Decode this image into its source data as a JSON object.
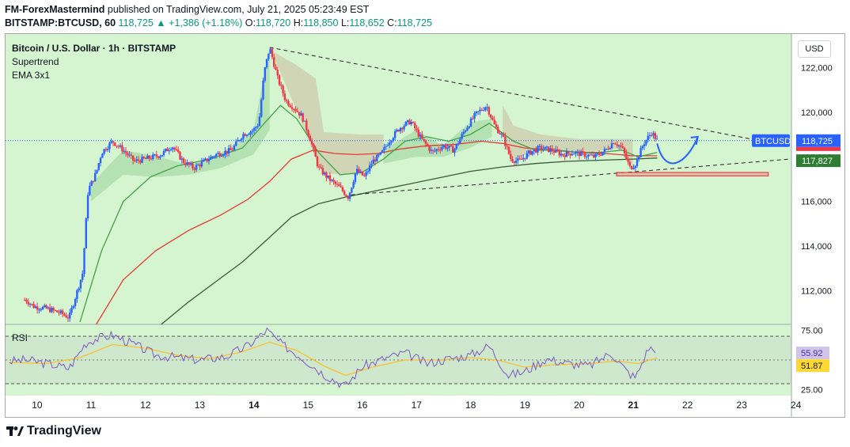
{
  "header": {
    "author": "FM-ForexMastermind",
    "published_text": "published on TradingView.com, July 21, 2025 05:23:49 EST",
    "symbol_line": "BITSTAMP:BTCUSD, 60",
    "last": "118,725",
    "change": "▲ +1,386 (+1.18%)",
    "o_label": "O:",
    "o": "118,720",
    "h_label": "H:",
    "h": "118,850",
    "l_label": "L:",
    "l": "118,652",
    "c_label": "C:",
    "c": "118,725"
  },
  "legend": {
    "title": "Bitcoin / U.S. Dollar · 1h · BITSTAMP",
    "ind1": "Supertrend",
    "ind2": "EMA 3x1",
    "rsi": "RSI"
  },
  "currency_button": "USD",
  "colors": {
    "bg": "#d5f5d0",
    "up": "#2962ff",
    "down": "#f23645",
    "ema_fast": "#43a047",
    "ema_mid": "#e53935",
    "ema_slow": "#3a5a3a",
    "rsi": "#7e57c2",
    "rsi_ma": "#fbc02d"
  },
  "footer_brand": "TradingView",
  "chart_data": [
    {
      "type": "candlestick",
      "title": "Bitcoin / U.S. Dollar · 1h · BITSTAMP",
      "ylim": [
        110500,
        123500
      ],
      "y_ticks": [
        112000,
        114000,
        116000,
        118000,
        120000,
        122000
      ],
      "y_tick_labels": [
        "112,000",
        "114,000",
        "116,000",
        "118,000",
        "120,000",
        "122,000"
      ],
      "x_labels": [
        "10",
        "11",
        "12",
        "13",
        "14",
        "15",
        "16",
        "17",
        "18",
        "19",
        "20",
        "21",
        "22",
        "23",
        "24"
      ],
      "x_range": [
        9.5,
        24.0
      ],
      "price_path": [
        [
          9.8,
          111600
        ],
        [
          9.95,
          111300
        ],
        [
          10.2,
          111200
        ],
        [
          10.45,
          111000
        ],
        [
          10.6,
          110800
        ],
        [
          10.85,
          112800
        ],
        [
          10.95,
          116500
        ],
        [
          11.1,
          117300
        ],
        [
          11.2,
          118200
        ],
        [
          11.4,
          118700
        ],
        [
          11.6,
          118300
        ],
        [
          11.8,
          117800
        ],
        [
          12.0,
          117900
        ],
        [
          12.3,
          118100
        ],
        [
          12.5,
          118500
        ],
        [
          12.7,
          117800
        ],
        [
          12.9,
          117500
        ],
        [
          13.1,
          117800
        ],
        [
          13.3,
          118100
        ],
        [
          13.6,
          118300
        ],
        [
          13.8,
          119000
        ],
        [
          14.0,
          119200
        ],
        [
          14.1,
          119500
        ],
        [
          14.2,
          121800
        ],
        [
          14.3,
          122900
        ],
        [
          14.45,
          121500
        ],
        [
          14.6,
          120500
        ],
        [
          14.75,
          120200
        ],
        [
          14.9,
          119800
        ],
        [
          15.05,
          118800
        ],
        [
          15.2,
          117500
        ],
        [
          15.4,
          117000
        ],
        [
          15.6,
          116600
        ],
        [
          15.75,
          116200
        ],
        [
          15.9,
          117400
        ],
        [
          16.05,
          117100
        ],
        [
          16.2,
          117800
        ],
        [
          16.35,
          118100
        ],
        [
          16.5,
          118700
        ],
        [
          16.7,
          119300
        ],
        [
          16.9,
          119600
        ],
        [
          17.1,
          118800
        ],
        [
          17.3,
          118200
        ],
        [
          17.5,
          118500
        ],
        [
          17.7,
          118300
        ],
        [
          17.9,
          119200
        ],
        [
          18.1,
          119900
        ],
        [
          18.3,
          120300
        ],
        [
          18.45,
          119400
        ],
        [
          18.6,
          118900
        ],
        [
          18.75,
          117900
        ],
        [
          18.9,
          117800
        ],
        [
          19.1,
          118200
        ],
        [
          19.3,
          118400
        ],
        [
          19.5,
          118300
        ],
        [
          19.7,
          118100
        ],
        [
          19.9,
          118200
        ],
        [
          20.1,
          118100
        ],
        [
          20.3,
          118000
        ],
        [
          20.5,
          118300
        ],
        [
          20.65,
          118700
        ],
        [
          20.8,
          118400
        ],
        [
          20.95,
          117500
        ],
        [
          21.05,
          117700
        ],
        [
          21.2,
          118600
        ],
        [
          21.35,
          119100
        ],
        [
          21.45,
          118725
        ]
      ],
      "ema_fast": [
        [
          10.8,
          110600
        ],
        [
          11.2,
          113800
        ],
        [
          11.6,
          116000
        ],
        [
          12.1,
          117100
        ],
        [
          12.6,
          117600
        ],
        [
          13.2,
          117900
        ],
        [
          13.8,
          118400
        ],
        [
          14.2,
          119500
        ],
        [
          14.5,
          120300
        ],
        [
          14.8,
          119700
        ],
        [
          15.2,
          118200
        ],
        [
          15.6,
          117200
        ],
        [
          16.0,
          117300
        ],
        [
          16.4,
          117900
        ],
        [
          16.8,
          118700
        ],
        [
          17.2,
          118900
        ],
        [
          17.6,
          118700
        ],
        [
          18.0,
          119000
        ],
        [
          18.35,
          119500
        ],
        [
          18.8,
          118700
        ],
        [
          19.2,
          118300
        ],
        [
          19.6,
          118300
        ],
        [
          20.0,
          118200
        ],
        [
          20.4,
          118200
        ],
        [
          20.8,
          118300
        ],
        [
          21.1,
          118000
        ],
        [
          21.45,
          118200
        ]
      ],
      "ema_mid": [
        [
          11.1,
          110500
        ],
        [
          11.6,
          112500
        ],
        [
          12.2,
          113800
        ],
        [
          12.8,
          114700
        ],
        [
          13.4,
          115400
        ],
        [
          13.9,
          116100
        ],
        [
          14.3,
          116900
        ],
        [
          14.7,
          117900
        ],
        [
          15.1,
          118300
        ],
        [
          15.5,
          118150
        ],
        [
          15.9,
          118100
        ],
        [
          16.3,
          118150
        ],
        [
          16.7,
          118350
        ],
        [
          17.2,
          118500
        ],
        [
          17.7,
          118550
        ],
        [
          18.2,
          118700
        ],
        [
          18.6,
          118600
        ],
        [
          19.0,
          118400
        ],
        [
          19.5,
          118300
        ],
        [
          20.0,
          118200
        ],
        [
          20.5,
          118150
        ],
        [
          21.0,
          118050
        ],
        [
          21.45,
          118050
        ]
      ],
      "ema_slow": [
        [
          12.3,
          110500
        ],
        [
          12.8,
          111500
        ],
        [
          13.3,
          112400
        ],
        [
          13.8,
          113300
        ],
        [
          14.3,
          114400
        ],
        [
          14.7,
          115300
        ],
        [
          15.2,
          115900
        ],
        [
          15.7,
          116200
        ],
        [
          16.2,
          116450
        ],
        [
          16.8,
          116750
        ],
        [
          17.4,
          117050
        ],
        [
          18.0,
          117350
        ],
        [
          18.6,
          117550
        ],
        [
          19.2,
          117700
        ],
        [
          19.8,
          117800
        ],
        [
          20.4,
          117850
        ],
        [
          21.0,
          117900
        ],
        [
          21.45,
          117950
        ]
      ],
      "trendline_upper": [
        [
          14.3,
          122900
        ],
        [
          23.4,
          118700
        ]
      ],
      "trendline_lower": [
        [
          15.8,
          116300
        ],
        [
          23.9,
          117900
        ]
      ],
      "support_zone": [
        117150,
        117300
      ],
      "support_zone_x": [
        20.7,
        23.5
      ],
      "projection": [
        [
          21.45,
          118600
        ],
        [
          21.6,
          117900
        ],
        [
          21.8,
          117700
        ],
        [
          22.0,
          118100
        ],
        [
          22.2,
          118900
        ]
      ],
      "price_labels": [
        {
          "text": "BTCUSD",
          "value": 118725,
          "color": "#2962ff"
        },
        {
          "text": "118,725",
          "value": 118725,
          "color": "#2962ff"
        },
        {
          "text": "117,827",
          "value": 117827,
          "color": "#2e7d32"
        }
      ]
    },
    {
      "type": "line",
      "title": "RSI",
      "ylim": [
        20,
        80
      ],
      "y_ticks": [
        25,
        75
      ],
      "y_tick_labels": [
        "25.00",
        "75.00"
      ],
      "band": [
        30,
        70
      ],
      "rsi": [
        [
          9.5,
          49
        ],
        [
          9.8,
          50
        ],
        [
          10.2,
          47
        ],
        [
          10.6,
          43
        ],
        [
          10.9,
          64
        ],
        [
          11.1,
          68
        ],
        [
          11.4,
          71
        ],
        [
          11.8,
          63
        ],
        [
          12.2,
          54
        ],
        [
          12.6,
          52
        ],
        [
          13.0,
          50
        ],
        [
          13.5,
          53
        ],
        [
          13.9,
          62
        ],
        [
          14.25,
          75
        ],
        [
          14.5,
          64
        ],
        [
          14.9,
          52
        ],
        [
          15.3,
          38
        ],
        [
          15.7,
          28
        ],
        [
          16.0,
          44
        ],
        [
          16.4,
          51
        ],
        [
          16.8,
          56
        ],
        [
          17.2,
          47
        ],
        [
          17.6,
          51
        ],
        [
          18.0,
          54
        ],
        [
          18.35,
          62
        ],
        [
          18.7,
          37
        ],
        [
          19.0,
          40
        ],
        [
          19.4,
          51
        ],
        [
          19.8,
          47
        ],
        [
          20.2,
          45
        ],
        [
          20.6,
          56
        ],
        [
          20.9,
          40
        ],
        [
          21.05,
          35
        ],
        [
          21.3,
          61
        ],
        [
          21.45,
          55.92
        ]
      ],
      "rsi_ma": [
        [
          9.5,
          48
        ],
        [
          10.2,
          47
        ],
        [
          10.8,
          52
        ],
        [
          11.4,
          63
        ],
        [
          12.0,
          60
        ],
        [
          12.6,
          54
        ],
        [
          13.2,
          51
        ],
        [
          13.8,
          57
        ],
        [
          14.3,
          65
        ],
        [
          14.8,
          58
        ],
        [
          15.3,
          45
        ],
        [
          15.7,
          37
        ],
        [
          16.2,
          44
        ],
        [
          16.8,
          50
        ],
        [
          17.4,
          50
        ],
        [
          18.0,
          52
        ],
        [
          18.5,
          50
        ],
        [
          19.0,
          44
        ],
        [
          19.6,
          46
        ],
        [
          20.2,
          47
        ],
        [
          20.7,
          49
        ],
        [
          21.1,
          47
        ],
        [
          21.45,
          51.87
        ]
      ],
      "labels": [
        {
          "text": "55.92",
          "value": 55.92,
          "color": "#7e57c2"
        },
        {
          "text": "51.87",
          "value": 51.87,
          "color": "#fbc02d"
        }
      ]
    }
  ]
}
